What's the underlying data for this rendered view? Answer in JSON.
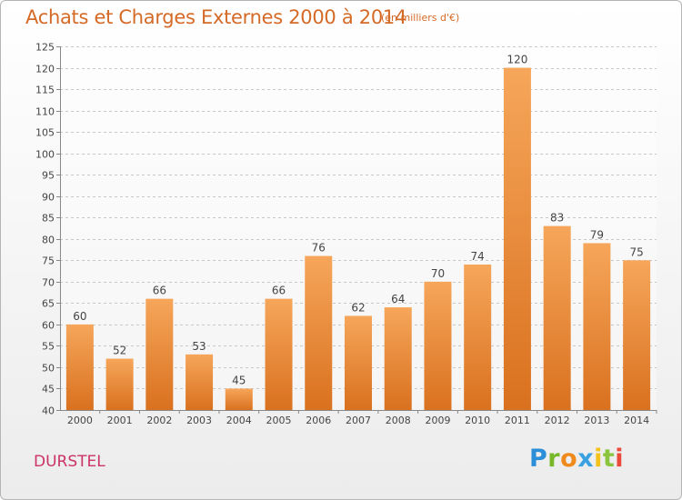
{
  "header": {
    "title": "Achats et Charges Externes 2000 à 2014",
    "subtitle": "(en milliers d'€)"
  },
  "footer": {
    "commune": "DURSTEL",
    "logo_text": "Proxiti"
  },
  "colors": {
    "title": "#d46a26",
    "bar_light": "#f6a65a",
    "bar_dark": "#d9711f",
    "commune": "#cc3366"
  },
  "chart_data": {
    "type": "bar",
    "title": "Achats et Charges Externes 2000 à 2014",
    "subtitle": "(en milliers d'€)",
    "xlabel": "",
    "ylabel": "",
    "categories": [
      "2000",
      "2001",
      "2002",
      "2003",
      "2004",
      "2005",
      "2006",
      "2007",
      "2008",
      "2009",
      "2010",
      "2011",
      "2012",
      "2013",
      "2014"
    ],
    "values": [
      60,
      52,
      66,
      53,
      45,
      66,
      76,
      62,
      64,
      70,
      74,
      120,
      83,
      79,
      75
    ],
    "ylim": [
      40,
      125
    ],
    "yticks": [
      40,
      45,
      50,
      55,
      60,
      65,
      70,
      75,
      80,
      85,
      90,
      95,
      100,
      105,
      110,
      115,
      120,
      125
    ],
    "grid": "horizontal dashed",
    "legend": "none"
  }
}
